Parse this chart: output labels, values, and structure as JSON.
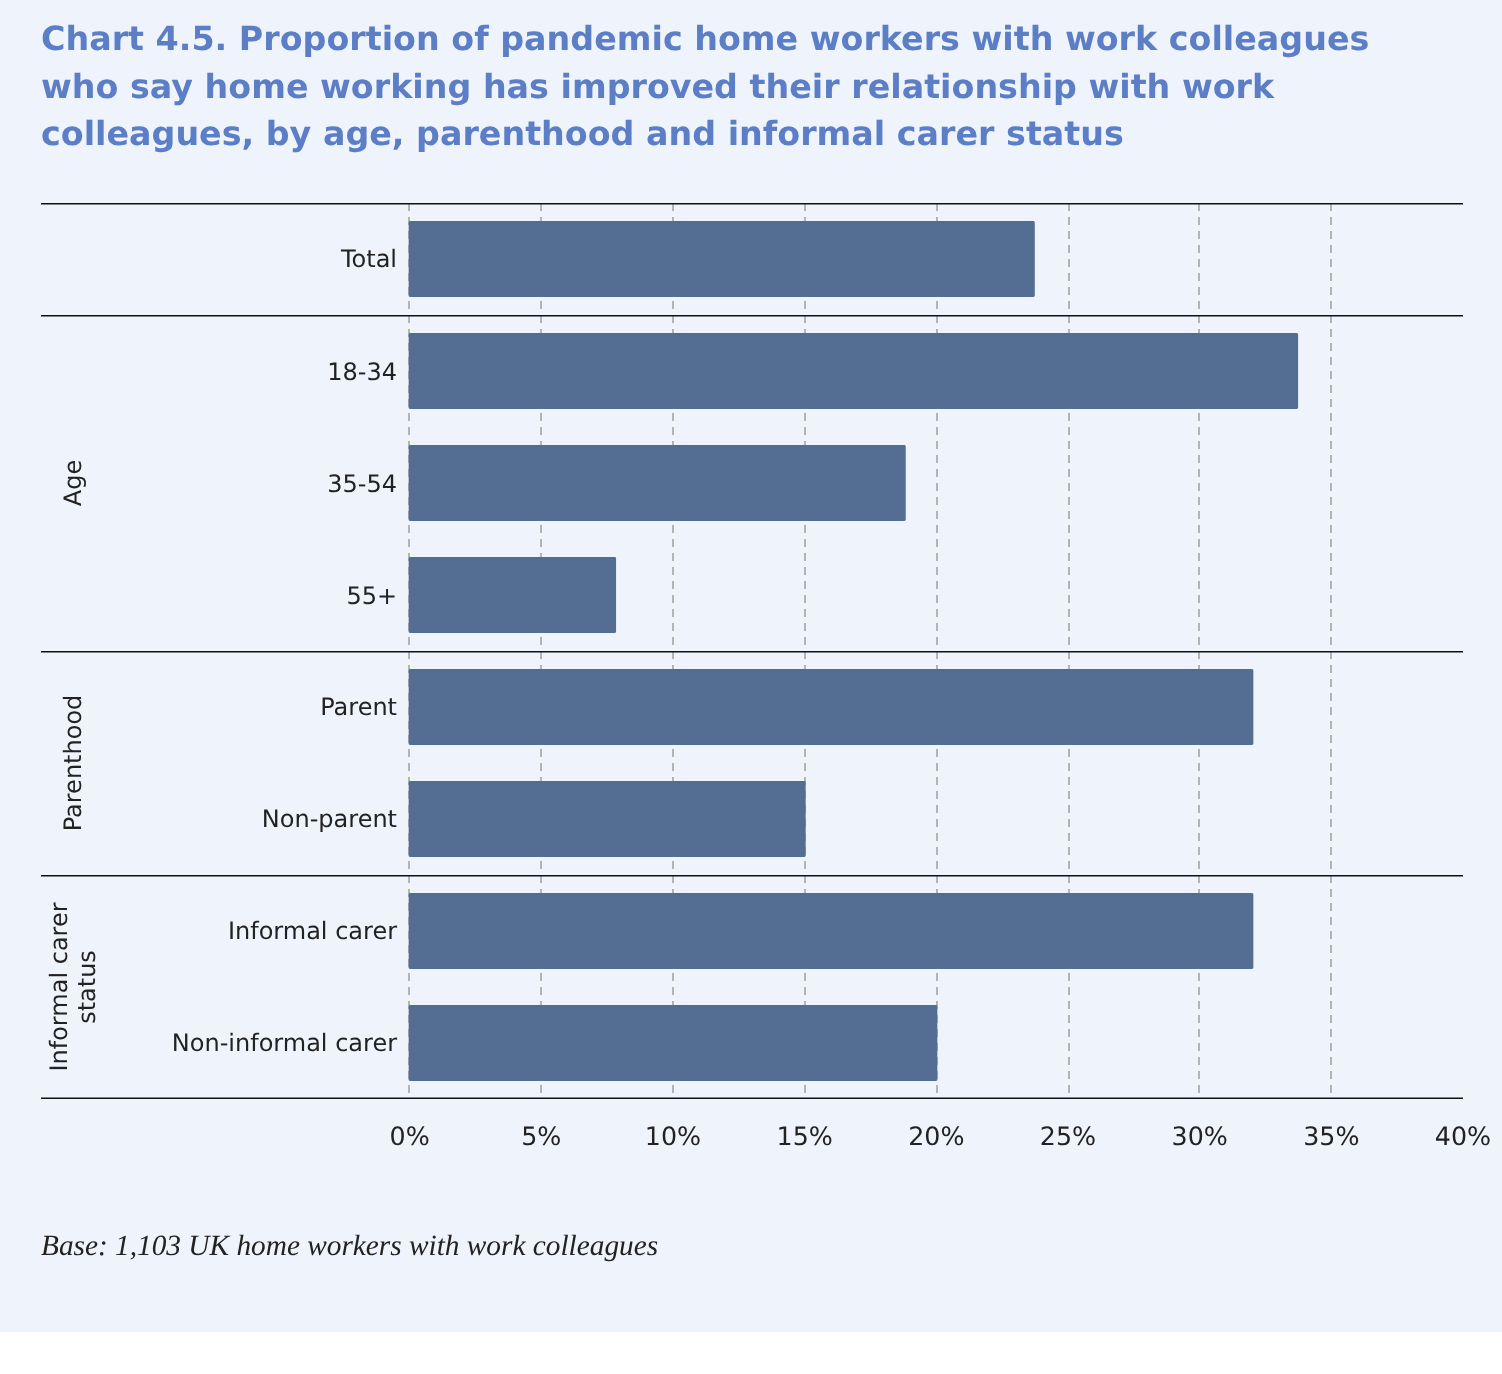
{
  "chart_data": [
    {
      "type": "bar",
      "orientation": "horizontal",
      "title": "Chart 4.5. Proportion of pandemic home workers with work colleagues who say home working has improved their relationship with work colleagues, by age, parenthood and informal carer status",
      "categories": [
        "Total"
      ],
      "values": [
        23.7
      ],
      "color": "#536d93",
      "xlim": [
        0,
        40
      ],
      "xticks": [
        0,
        5,
        10,
        15,
        20,
        25,
        30,
        35,
        40
      ],
      "tick_labels": "y",
      "grid": "x"
    },
    {
      "type": "bar",
      "orientation": "horizontal",
      "ylabel": "Age",
      "categories": [
        "18-34",
        "35-54",
        "55+"
      ],
      "values": [
        33.7,
        18.8,
        7.8
      ],
      "color": "#536d93",
      "xlim": [
        0,
        40
      ],
      "xticks": [
        0,
        5,
        10,
        15,
        20,
        25,
        30,
        35,
        40
      ],
      "tick_labels": "y",
      "grid": "x"
    },
    {
      "type": "bar",
      "orientation": "horizontal",
      "ylabel": "Parenthood",
      "categories": [
        "Parent",
        "Non-parent"
      ],
      "values": [
        32.0,
        15.0
      ],
      "color": "#536d93",
      "xlim": [
        0,
        40
      ],
      "xticks": [
        0,
        5,
        10,
        15,
        20,
        25,
        30,
        35,
        40
      ],
      "tick_labels": "y",
      "grid": "x"
    },
    {
      "type": "bar",
      "orientation": "horizontal",
      "ylabel": "Informal carer status",
      "categories": [
        "Informal carer",
        "Non-informal carer"
      ],
      "values": [
        32.0,
        20.0
      ],
      "color": "#536d93",
      "xlim": [
        0,
        40
      ],
      "xticks": [
        {
          "value": 0,
          "label": "0%"
        },
        {
          "value": 5,
          "label": "5%"
        },
        {
          "value": 10,
          "label": "10%"
        },
        {
          "value": 15,
          "label": "15%"
        },
        {
          "value": 20,
          "label": "20%"
        },
        {
          "value": 25,
          "label": "25%"
        },
        {
          "value": 30,
          "label": "30%"
        },
        {
          "value": 35,
          "label": "35%"
        },
        {
          "value": 40,
          "label": "40%"
        }
      ],
      "grid": "x",
      "annotations": [
        "Base: 1,103 UK home workers with work colleagues"
      ]
    }
  ]
}
